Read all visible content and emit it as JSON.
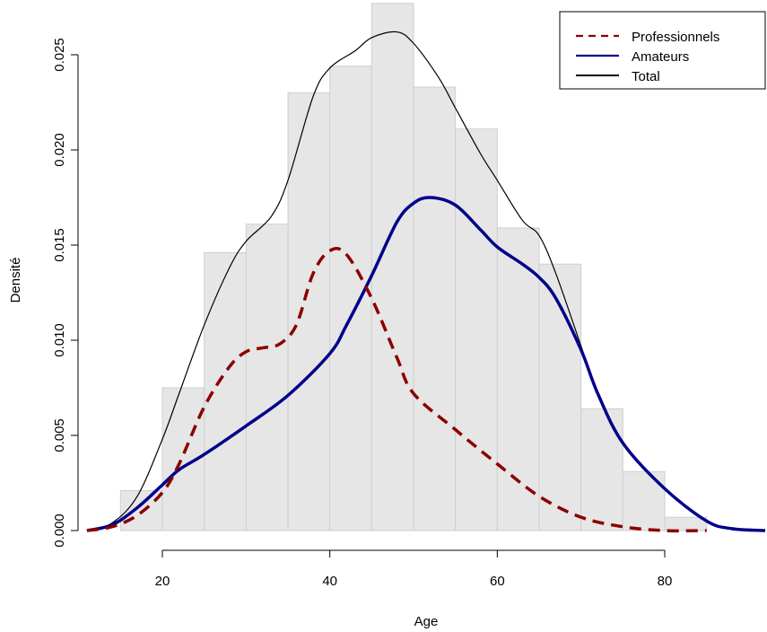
{
  "chart_data": {
    "type": "area",
    "xlabel": "Age",
    "ylabel": "Densité",
    "xlim": [
      11,
      92
    ],
    "ylim": [
      0,
      0.0275
    ],
    "x_ticks": [
      20,
      40,
      60,
      80
    ],
    "x_tick_labels": [
      "20",
      "40",
      "60",
      "80"
    ],
    "y_ticks": [
      0,
      0.005,
      0.01,
      0.015,
      0.02,
      0.025
    ],
    "y_tick_labels": [
      "0.000",
      "0.005",
      "0.010",
      "0.015",
      "0.020",
      "0.025"
    ],
    "histogram": {
      "bin_edges": [
        15,
        20,
        25,
        30,
        35,
        40,
        45,
        50,
        55,
        60,
        65,
        70,
        75,
        80,
        85
      ],
      "densities": [
        0.0021,
        0.0075,
        0.0146,
        0.0161,
        0.023,
        0.0244,
        0.0277,
        0.0233,
        0.0211,
        0.0159,
        0.014,
        0.0064,
        0.0031,
        0.0007
      ],
      "fill": "#e6e6e6",
      "stroke": "#cfcfcf"
    },
    "series": [
      {
        "name": "Professionnels",
        "color": "#8b0000",
        "style": "dashed",
        "x": [
          11,
          14,
          17,
          20,
          22,
          25,
          28,
          30,
          32,
          34,
          36,
          38,
          40,
          42,
          45,
          48,
          50,
          55,
          60,
          65,
          70,
          75,
          80,
          85
        ],
        "y": [
          0.0,
          0.0002,
          0.0008,
          0.002,
          0.0035,
          0.0065,
          0.0086,
          0.0094,
          0.0096,
          0.0098,
          0.0108,
          0.0135,
          0.0147,
          0.0145,
          0.0122,
          0.0091,
          0.0072,
          0.0053,
          0.0035,
          0.0018,
          0.0007,
          0.0002,
          0.0,
          0.0
        ]
      },
      {
        "name": "Amateurs",
        "color": "#00008b",
        "style": "solid-thick",
        "x": [
          11,
          14,
          17,
          20,
          22,
          25,
          30,
          35,
          40,
          42,
          45,
          48,
          50,
          52,
          55,
          58,
          60,
          63,
          65,
          67,
          70,
          72,
          75,
          80,
          85,
          88,
          92
        ],
        "y": [
          0.0,
          0.0003,
          0.0012,
          0.0024,
          0.0032,
          0.004,
          0.0055,
          0.0071,
          0.0093,
          0.0108,
          0.0134,
          0.0162,
          0.0172,
          0.0175,
          0.0171,
          0.0158,
          0.0149,
          0.014,
          0.0133,
          0.0122,
          0.0095,
          0.0072,
          0.0046,
          0.0022,
          0.0005,
          0.0001,
          0.0
        ]
      },
      {
        "name": "Total",
        "color": "#000000",
        "style": "solid-thin",
        "x": [
          11,
          14,
          17,
          20,
          22,
          25,
          28,
          30,
          33,
          35,
          38,
          40,
          43,
          45,
          48,
          50,
          53,
          55,
          58,
          60,
          63,
          65,
          67,
          70,
          72,
          75,
          80,
          85,
          88,
          92
        ],
        "y": [
          0.0,
          0.0004,
          0.0018,
          0.0048,
          0.0072,
          0.0108,
          0.0138,
          0.0152,
          0.0165,
          0.0184,
          0.0228,
          0.0243,
          0.0252,
          0.0259,
          0.0262,
          0.0256,
          0.0238,
          0.0222,
          0.0198,
          0.0184,
          0.0163,
          0.0155,
          0.0135,
          0.0097,
          0.0072,
          0.0046,
          0.0022,
          0.0005,
          0.0001,
          0.0
        ]
      }
    ],
    "legend": {
      "position": "top-right",
      "entries": [
        "Professionnels",
        "Amateurs",
        "Total"
      ]
    }
  }
}
